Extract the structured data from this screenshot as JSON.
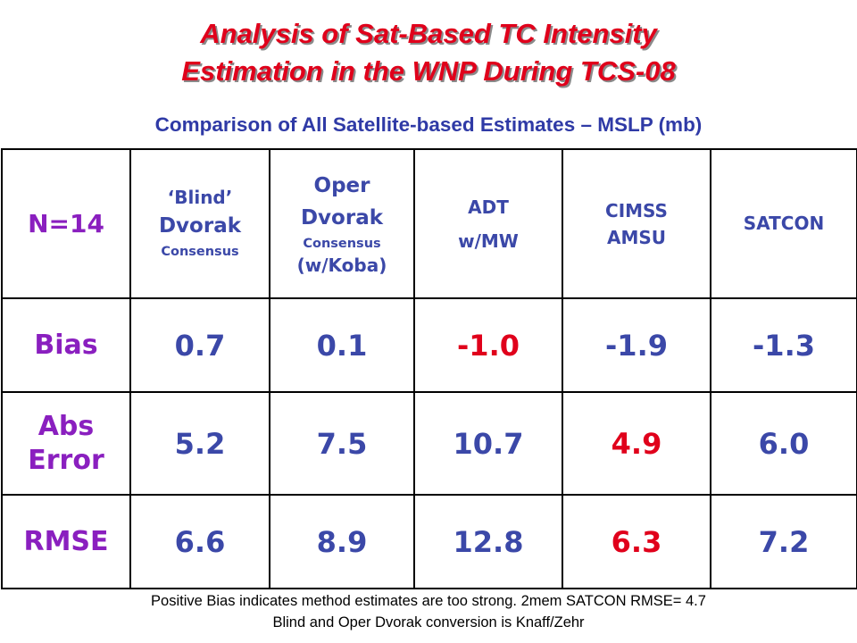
{
  "title": {
    "line1": "Analysis of Sat-Based TC Intensity",
    "line2": "Estimation in the WNP During TCS-08"
  },
  "subtitle": "Comparison of All Satellite-based Estimates – MSLP (mb)",
  "table": {
    "corner": "N=14",
    "columns": [
      {
        "lines": [
          "‘Blind’",
          "Dvorak",
          "Consensus"
        ]
      },
      {
        "lines": [
          "Oper",
          "Dvorak",
          "Consensus",
          "(w/Koba)"
        ]
      },
      {
        "lines": [
          "ADT",
          "w/MW"
        ]
      },
      {
        "lines": [
          "CIMSS",
          "AMSU"
        ]
      },
      {
        "lines": [
          "SATCON"
        ]
      }
    ],
    "rows": [
      {
        "label": "Bias",
        "values": [
          "0.7",
          "0.1",
          "-1.0",
          "-1.9",
          "-1.3"
        ]
      },
      {
        "label_lines": [
          "Abs",
          "Error"
        ],
        "values": [
          "5.2",
          "7.5",
          "10.7",
          "4.9",
          "6.0"
        ]
      },
      {
        "label": "RMSE",
        "values": [
          "6.6",
          "8.9",
          "12.8",
          "6.3",
          "7.2"
        ]
      }
    ],
    "highlight_color": "#e0001b",
    "value_color": "#3b48a8",
    "label_color": "#8a1fbf"
  },
  "footnotes": {
    "line1": "Positive Bias indicates method estimates are too strong.  2mem SATCON RMSE= 4.7",
    "line2": "Blind and Oper Dvorak conversion is Knaff/Zehr"
  }
}
